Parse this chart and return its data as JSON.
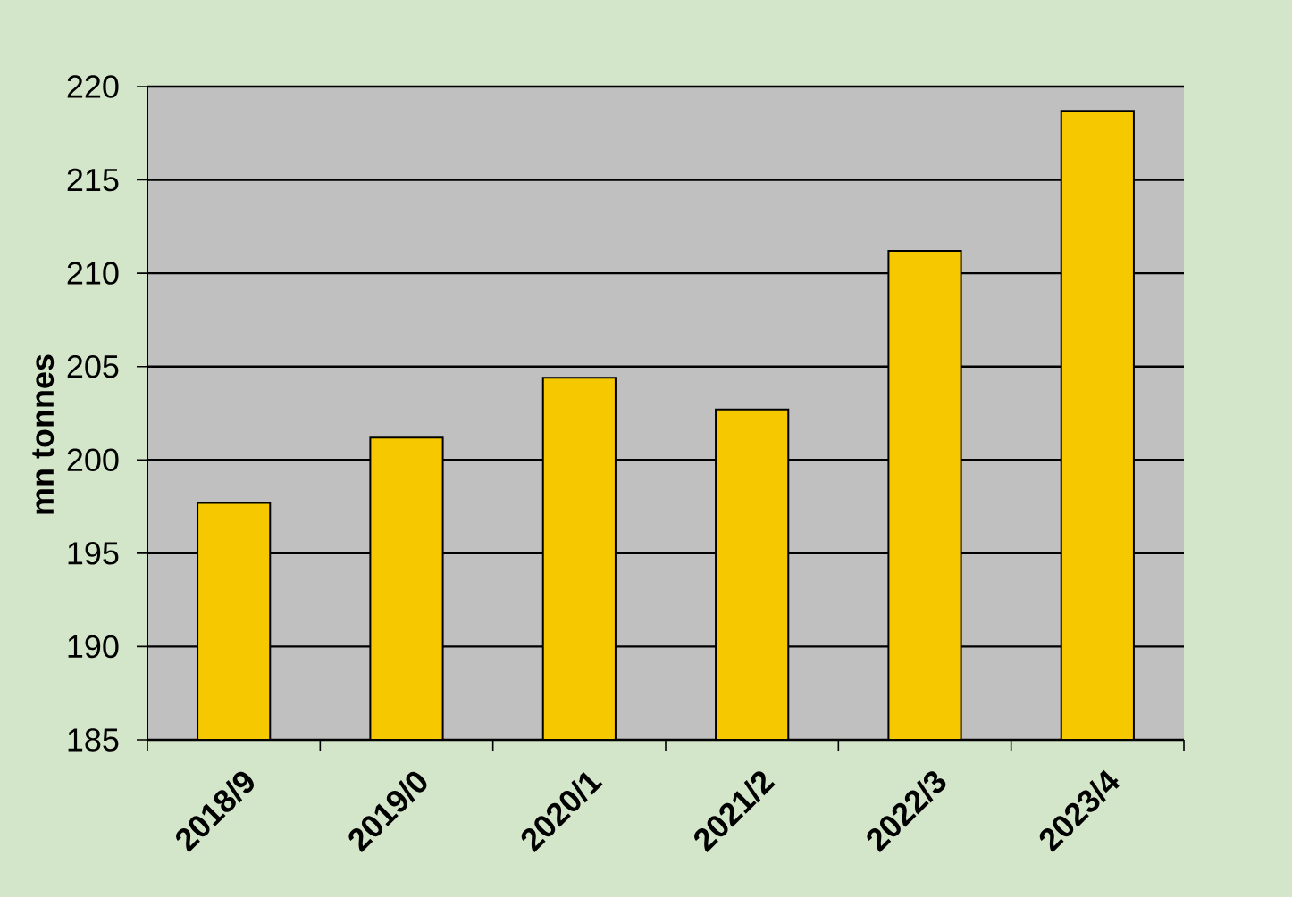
{
  "chart_data": {
    "type": "bar",
    "ylabel": "mn tonnes",
    "categories": [
      "2018/9",
      "2019/0",
      "2020/1",
      "2021/2",
      "2022/3",
      "2023/4"
    ],
    "values": [
      197.7,
      201.2,
      204.4,
      202.7,
      211.2,
      218.7
    ],
    "color": "#f5c800",
    "ylim": [
      185,
      220
    ],
    "yticks": [
      185,
      190,
      195,
      200,
      205,
      210,
      215,
      220
    ],
    "grid": "y"
  }
}
